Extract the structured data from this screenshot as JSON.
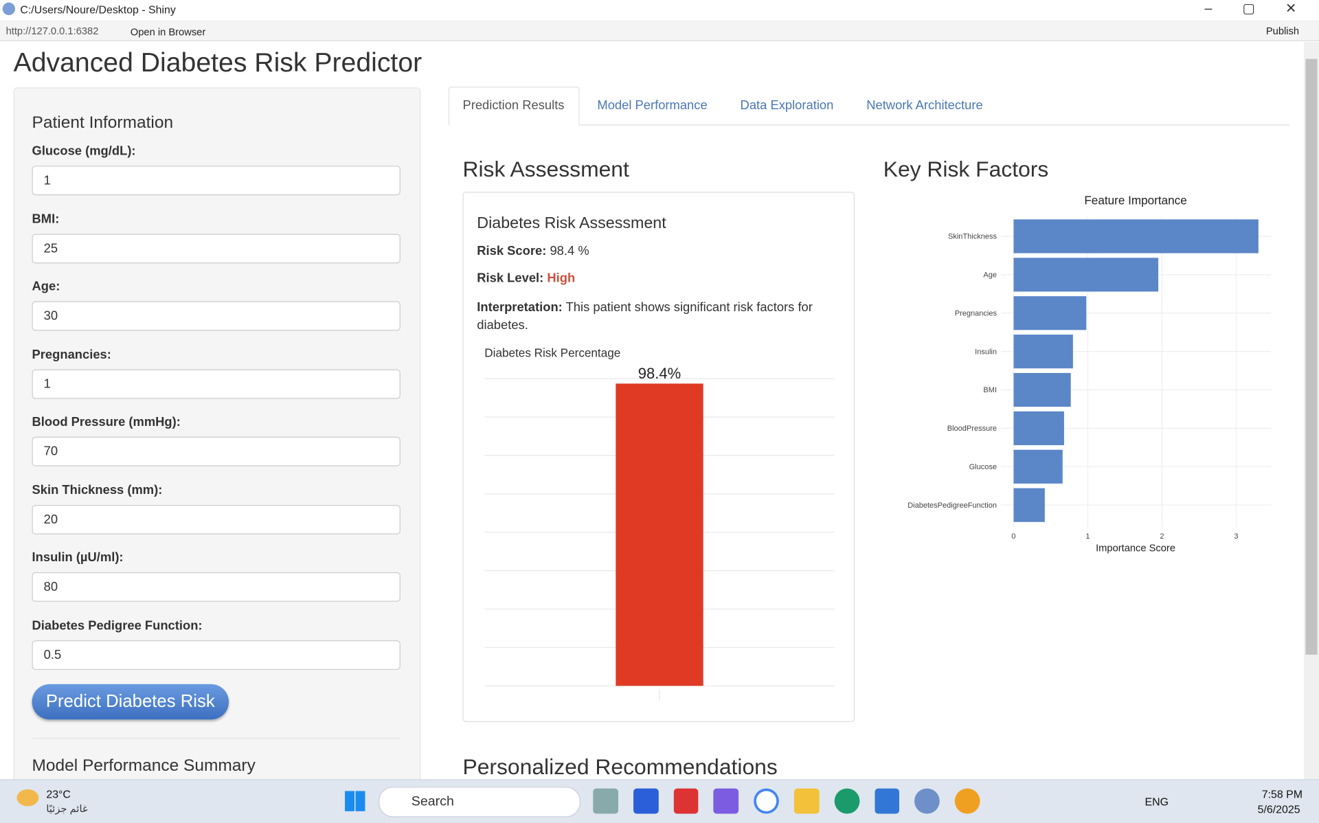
{
  "window": {
    "title": "C:/Users/Noure/Desktop - Shiny",
    "url": "http://127.0.0.1:6382",
    "open_browser": "Open in Browser",
    "publish": "Publish"
  },
  "app": {
    "title": "Advanced Diabetes Risk Predictor"
  },
  "sidebar": {
    "heading": "Patient Information",
    "inputs": [
      {
        "label": "Glucose (mg/dL):",
        "value": "1"
      },
      {
        "label": "BMI:",
        "value": "25"
      },
      {
        "label": "Age:",
        "value": "30"
      },
      {
        "label": "Pregnancies:",
        "value": "1"
      },
      {
        "label": "Blood Pressure (mmHg):",
        "value": "70"
      },
      {
        "label": "Skin Thickness (mm):",
        "value": "20"
      },
      {
        "label": "Insulin (µU/ml):",
        "value": "80"
      },
      {
        "label": "Diabetes Pedigree Function:",
        "value": "0.5"
      }
    ],
    "button": "Predict Diabetes Risk",
    "summary_heading": "Model Performance Summary"
  },
  "tabs": [
    "Prediction Results",
    "Model Performance",
    "Data Exploration",
    "Network Architecture"
  ],
  "risk": {
    "heading": "Risk Assessment",
    "box_title": "Diabetes Risk Assessment",
    "score_label": "Risk Score:",
    "score": "98.4 %",
    "level_label": "Risk Level:",
    "level": "High",
    "interp_label": "Interpretation:",
    "interp": "This patient shows significant risk factors for diabetes."
  },
  "risk_chart": {
    "type": "bar",
    "title": "Diabetes Risk Percentage",
    "categories": [
      null
    ],
    "values": [
      98.4
    ],
    "value_labels": [
      "98.4%"
    ],
    "color": "#e03a24",
    "ylim": [
      0,
      100
    ],
    "yticks": [
      0,
      12.5,
      25,
      37.5,
      50,
      62.5,
      75,
      87.5,
      100
    ],
    "grid": true
  },
  "factors": {
    "heading": "Key Risk Factors"
  },
  "importance_chart": {
    "type": "hbar",
    "title": "Feature Importance",
    "x_label": "Importance Score",
    "categories": [
      "SkinThickness",
      "Age",
      "Pregnancies",
      "Insulin",
      "BMI",
      "BloodPressure",
      "Glucose",
      "DiabetesPedigreeFunction"
    ],
    "values": [
      3.3,
      1.95,
      0.98,
      0.8,
      0.77,
      0.68,
      0.66,
      0.42
    ],
    "color": "#5b86c8",
    "xlim": [
      -0.17,
      3.47
    ],
    "xticks": [
      0,
      1,
      2,
      3
    ],
    "grid": true
  },
  "recommendations": {
    "heading": "Personalized Recommendations"
  },
  "taskbar": {
    "temp": "23°C",
    "weather": "غائم جزئيًا",
    "search": "Search",
    "lang": "ENG",
    "time": "7:58 PM",
    "date": "5/6/2025"
  }
}
